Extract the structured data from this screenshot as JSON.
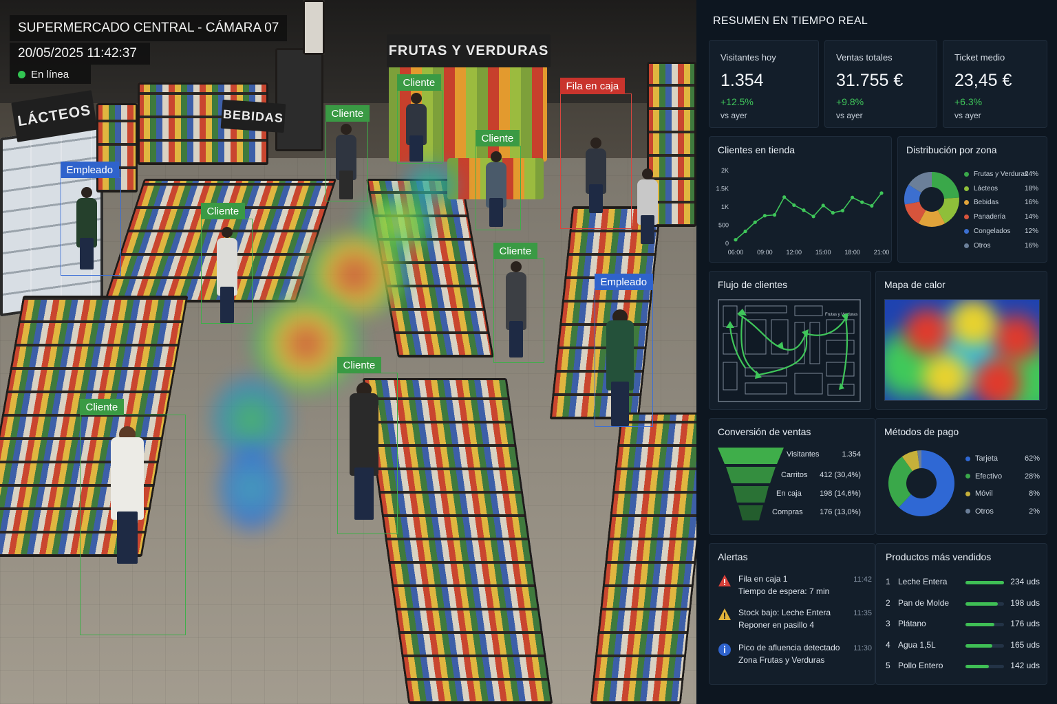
{
  "camera": {
    "title": "SUPERMERCADO CENTRAL - CÁMARA 07",
    "datetime": "20/05/2025  11:42:37",
    "status": "En línea",
    "signs": {
      "lacteos": "LÁCTEOS",
      "bebidas": "BEBIDAS",
      "frutas": "FRUTAS Y VERDURAS"
    },
    "detections": [
      {
        "label": "Cliente",
        "kind": "green"
      },
      {
        "label": "Cliente",
        "kind": "green"
      },
      {
        "label": "Cliente",
        "kind": "green"
      },
      {
        "label": "Cliente",
        "kind": "green"
      },
      {
        "label": "Cliente",
        "kind": "green"
      },
      {
        "label": "Cliente",
        "kind": "green"
      },
      {
        "label": "Cliente",
        "kind": "green"
      },
      {
        "label": "Empleado",
        "kind": "blue"
      },
      {
        "label": "Empleado",
        "kind": "blue"
      },
      {
        "label": "Fila en caja",
        "kind": "red"
      }
    ]
  },
  "dashboard": {
    "title": "RESUMEN EN TIEMPO REAL",
    "kpis": [
      {
        "label": "Visitantes hoy",
        "value": "1.354",
        "delta": "+12.5%",
        "sub": "vs ayer"
      },
      {
        "label": "Ventas totales",
        "value": "31.755 €",
        "delta": "+9.8%",
        "sub": "vs ayer"
      },
      {
        "label": "Ticket medio",
        "value": "23,45 €",
        "delta": "+6.3%",
        "sub": "vs ayer"
      }
    ],
    "clients_title": "Clientes en tienda",
    "zone_title": "Distribución por zona",
    "flow_title": "Flujo de clientes",
    "heatmap_title": "Mapa de calor",
    "conversion_title": "Conversión de ventas",
    "payment_title": "Métodos de pago",
    "alerts_title": "Alertas",
    "products_title": "Productos más vendidos",
    "flow_map_label": "Frutas y Verduras",
    "alerts": [
      {
        "icon": "warning-red",
        "line1": "Fila en caja 1",
        "line2": "Tiempo de espera: 7 min",
        "time": "11:42"
      },
      {
        "icon": "warning-yellow",
        "line1": "Stock bajo: Leche Entera",
        "line2": "Reponer en pasillo 4",
        "time": "11:35"
      },
      {
        "icon": "info-blue",
        "line1": "Pico de afluencia detectado",
        "line2": "Zona Frutas y Verduras",
        "time": "11:30"
      }
    ],
    "products": [
      {
        "rank": "1",
        "name": "Leche Entera",
        "units": "234 uds",
        "value": 234
      },
      {
        "rank": "2",
        "name": "Pan de Molde",
        "units": "198 uds",
        "value": 198
      },
      {
        "rank": "3",
        "name": "Plátano",
        "units": "176 uds",
        "value": 176
      },
      {
        "rank": "4",
        "name": "Agua 1,5L",
        "units": "165 uds",
        "value": 165
      },
      {
        "rank": "5",
        "name": "Pollo Entero",
        "units": "142 uds",
        "value": 142
      }
    ],
    "funnel": [
      {
        "stage": "Visitantes",
        "value": "1.354"
      },
      {
        "stage": "Carritos",
        "value": "412 (30,4%)"
      },
      {
        "stage": "En caja",
        "value": "198 (14,6%)"
      },
      {
        "stage": "Compras",
        "value": "176 (13,0%)"
      }
    ],
    "colors": {
      "accent_green": "#3fc65a",
      "bg": "#0d1620",
      "card": "#131e2a"
    }
  },
  "chart_data": [
    {
      "type": "line",
      "title": "Clientes en tienda",
      "x": [
        "06:00",
        "07:00",
        "08:00",
        "09:00",
        "10:00",
        "11:00",
        "12:00",
        "13:00",
        "14:00",
        "15:00",
        "16:00",
        "17:00",
        "18:00",
        "19:00",
        "20:00",
        "21:00"
      ],
      "xticks": [
        "06:00",
        "09:00",
        "12:00",
        "15:00",
        "18:00",
        "21:00"
      ],
      "yticks": [
        "0",
        "500",
        "1K",
        "1.5K",
        "2K"
      ],
      "values": [
        100,
        330,
        580,
        760,
        780,
        1270,
        1050,
        910,
        740,
        1040,
        840,
        900,
        1260,
        1130,
        1030,
        1380
      ],
      "ylim": [
        0,
        2000
      ]
    },
    {
      "type": "pie",
      "title": "Distribución por zona",
      "labels": [
        "Frutas y Verduras",
        "Lácteos",
        "Bebidas",
        "Panadería",
        "Congelados",
        "Otros"
      ],
      "display": [
        "24%",
        "18%",
        "16%",
        "14%",
        "12%",
        "16%"
      ],
      "values": [
        24,
        18,
        16,
        14,
        12,
        16
      ],
      "colors": [
        "#3aa84a",
        "#8fbf3a",
        "#e0a33a",
        "#d6543c",
        "#3c6fd0",
        "#6b7f99"
      ]
    },
    {
      "type": "pie",
      "title": "Métodos de pago",
      "labels": [
        "Tarjeta",
        "Efectivo",
        "Móvil",
        "Otros"
      ],
      "display": [
        "62%",
        "28%",
        "8%",
        "2%"
      ],
      "values": [
        62,
        28,
        8,
        2
      ],
      "colors": [
        "#2f68d4",
        "#3aa84a",
        "#c6b03a",
        "#6b7f99"
      ]
    }
  ]
}
